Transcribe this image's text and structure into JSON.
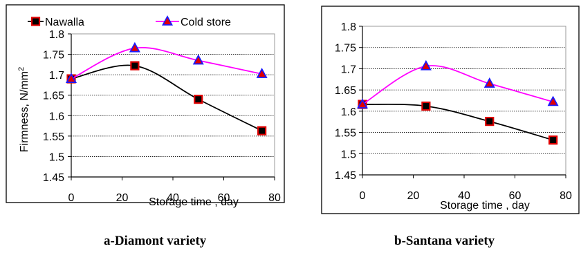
{
  "chart_data": [
    {
      "type": "line",
      "id": "a",
      "caption": "a-Diamont variety",
      "xlabel": "Storage time , day",
      "ylabel": "Firmness, N/mm",
      "ylabel_sup": "2",
      "xlim": [
        0,
        80
      ],
      "ylim": [
        1.45,
        1.8
      ],
      "x_ticks": [
        "0",
        "20",
        "40",
        "60",
        "80"
      ],
      "y_ticks": [
        "1.45",
        "1.5",
        "1.55",
        "1.6",
        "1.65",
        "1.7",
        "1.75",
        "1.8"
      ],
      "grid": "horizontal",
      "legend": "top",
      "x": [
        0,
        25,
        50,
        75
      ],
      "series": [
        {
          "name": "Nawalla",
          "values": [
            1.69,
            1.722,
            1.64,
            1.563
          ],
          "color": "#000000",
          "marker": "square",
          "marker_fill": "#000000",
          "marker_edge": "#e00000"
        },
        {
          "name": "Cold store",
          "values": [
            1.69,
            1.765,
            1.735,
            1.702
          ],
          "color": "#ff00ff",
          "marker": "triangle",
          "marker_fill": "#e00000",
          "marker_edge": "#1a1aff"
        }
      ]
    },
    {
      "type": "line",
      "id": "b",
      "caption": "b-Santana variety",
      "xlabel": "Storage time , day",
      "ylabel": "",
      "ylabel_sup": "",
      "xlim": [
        0,
        80
      ],
      "ylim": [
        1.45,
        1.8
      ],
      "x_ticks": [
        "0",
        "20",
        "40",
        "60",
        "80"
      ],
      "y_ticks": [
        "1.45",
        "1.5",
        "1.55",
        "1.6",
        "1.65",
        "1.7",
        "1.75",
        "1.8"
      ],
      "grid": "horizontal",
      "legend": "none",
      "x": [
        0,
        25,
        50,
        75
      ],
      "series": [
        {
          "name": "Nawalla",
          "values": [
            1.616,
            1.612,
            1.576,
            1.532
          ],
          "color": "#000000",
          "marker": "square",
          "marker_fill": "#000000",
          "marker_edge": "#e00000"
        },
        {
          "name": "Cold store",
          "values": [
            1.616,
            1.706,
            1.665,
            1.622
          ],
          "color": "#ff00ff",
          "marker": "triangle",
          "marker_fill": "#e00000",
          "marker_edge": "#1a1aff"
        }
      ]
    }
  ]
}
